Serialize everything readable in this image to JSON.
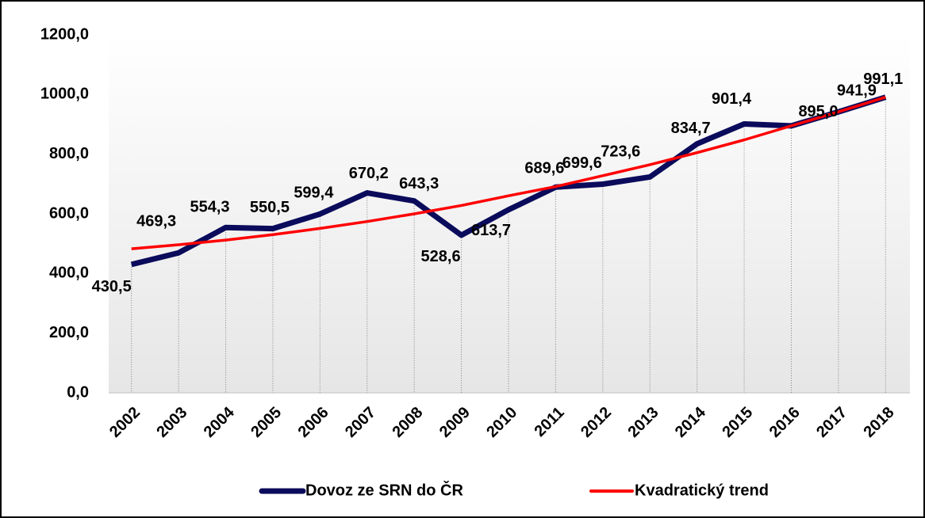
{
  "chart_data": {
    "type": "line",
    "categories": [
      "2002",
      "2003",
      "2004",
      "2005",
      "2006",
      "2007",
      "2008",
      "2009",
      "2010",
      "2011",
      "2012",
      "2013",
      "2014",
      "2015",
      "2016",
      "2017",
      "2018"
    ],
    "series": [
      {
        "name": "Dovoz ze SRN do ČR",
        "color": "#0b0b5c",
        "values": [
          430.5,
          469.3,
          554.3,
          550.5,
          599.4,
          670.2,
          643.3,
          528.6,
          613.7,
          689.6,
          699.6,
          723.6,
          834.7,
          901.4,
          895.0,
          941.9,
          991.1
        ],
        "value_labels": [
          "430,5",
          "469,3",
          "554,3",
          "550,5",
          "599,4",
          "670,2",
          "643,3",
          "528,6",
          "613,7",
          "689,6",
          "699,6",
          "723,6",
          "834,7",
          "901,4",
          null,
          null,
          null
        ]
      },
      {
        "name": "Kvadratický trend",
        "color": "#ff0000",
        "values": [
          483.0,
          496.4,
          512.2,
          530.4,
          551.1,
          574.3,
          600.0,
          628.0,
          660.5,
          691.5,
          727.9,
          764.8,
          805.1,
          847.9,
          895.0,
          941.9,
          991.1
        ],
        "value_labels": [
          null,
          null,
          null,
          null,
          null,
          null,
          null,
          null,
          null,
          null,
          null,
          null,
          null,
          null,
          "895,0",
          "941,9",
          "991,1"
        ]
      }
    ],
    "ylim": [
      0,
      1200
    ],
    "yticks": [
      {
        "value": 0,
        "label": "0,0"
      },
      {
        "value": 200,
        "label": "200,0"
      },
      {
        "value": 400,
        "label": "400,0"
      },
      {
        "value": 600,
        "label": "600,0"
      },
      {
        "value": 800,
        "label": "800,0"
      },
      {
        "value": 1000,
        "label": "1000,0"
      },
      {
        "value": 1200,
        "label": "1200,0"
      }
    ],
    "legend": "bottom",
    "drop_lines": true
  }
}
